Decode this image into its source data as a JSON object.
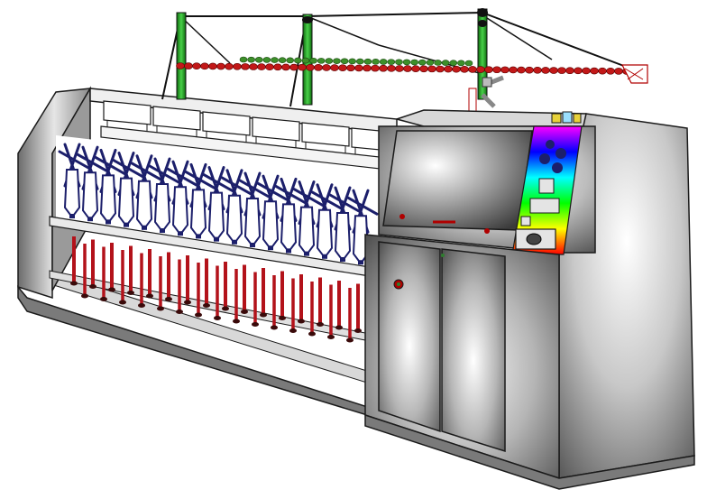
{
  "illustration": {
    "subject": "textile-spinning-machine",
    "colors": {
      "frame_dark": "#2b2b2b",
      "steel_light": "#f2f2f2",
      "steel_mid": "#b9b9b9",
      "steel_dark": "#5a5a5a",
      "bobbin_navy": "#1c1f6b",
      "spindle_red": "#b3121a",
      "spindle_dark": "#3a0a0a",
      "bead_red": "#c21818",
      "bead_green": "#3d8f2a",
      "mast_green": "#28a428",
      "indicator_red": "#b00000"
    }
  }
}
